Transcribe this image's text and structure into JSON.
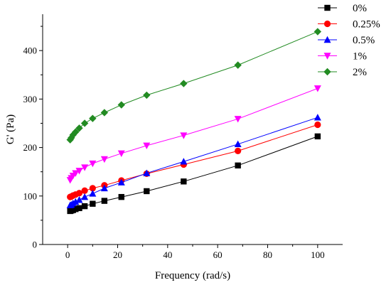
{
  "chart_data": {
    "type": "line",
    "xlabel": "Frequency (rad/s)",
    "ylabel": "G' (Pa)",
    "xlim": [
      -10,
      110
    ],
    "ylim": [
      0,
      475
    ],
    "xticks": [
      0,
      20,
      40,
      60,
      80,
      100
    ],
    "yticks": [
      0,
      100,
      200,
      300,
      400
    ],
    "legend_position": "top-right",
    "series": [
      {
        "name": "0%",
        "color": "#000000",
        "marker": "square",
        "x": [
          1,
          1.47,
          2.15,
          3.16,
          4.64,
          6.81,
          10,
          14.7,
          21.5,
          31.6,
          46.4,
          68.1,
          100
        ],
        "y": [
          69,
          70,
          71,
          73,
          75,
          79,
          84,
          90,
          98,
          110,
          130,
          163,
          223
        ]
      },
      {
        "name": "0.25%",
        "color": "#ff0000",
        "marker": "circle",
        "x": [
          1,
          1.47,
          2.15,
          3.16,
          4.64,
          6.81,
          10,
          14.7,
          21.5,
          31.6,
          46.4,
          68.1,
          100
        ],
        "y": [
          98,
          99,
          101,
          103,
          106,
          111,
          116,
          122,
          132,
          146,
          165,
          193,
          247
        ]
      },
      {
        "name": "0.5%",
        "color": "#0000ff",
        "marker": "triangle-up",
        "x": [
          1,
          1.47,
          2.15,
          3.16,
          4.64,
          6.81,
          10,
          14.7,
          21.5,
          31.6,
          46.4,
          68.1,
          100
        ],
        "y": [
          81,
          82,
          85,
          88,
          92,
          98,
          105,
          116,
          128,
          147,
          171,
          207,
          262
        ]
      },
      {
        "name": "1%",
        "color": "#ff00ff",
        "marker": "triangle-down",
        "x": [
          1,
          1.47,
          2.15,
          3.16,
          4.64,
          6.81,
          10,
          14.7,
          21.5,
          31.6,
          46.4,
          68.1,
          100
        ],
        "y": [
          133,
          137,
          142,
          147,
          152,
          159,
          167,
          176,
          188,
          204,
          225,
          259,
          322
        ]
      },
      {
        "name": "2%",
        "color": "#228b22",
        "marker": "diamond",
        "x": [
          1,
          1.47,
          2.15,
          3.16,
          4.64,
          6.81,
          10,
          14.7,
          21.5,
          31.6,
          46.4,
          68.1,
          100
        ],
        "y": [
          216,
          220,
          226,
          232,
          240,
          250,
          260,
          272,
          288,
          308,
          332,
          370,
          439
        ]
      }
    ]
  }
}
